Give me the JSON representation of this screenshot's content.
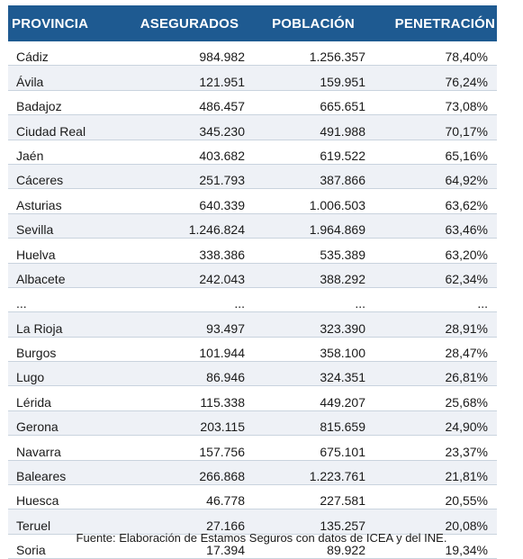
{
  "headers": {
    "provincia": "PROVINCIA",
    "asegurados": "ASEGURADOS",
    "poblacion": "POBLACIÓN",
    "penetracion": "PENETRACIÓN"
  },
  "colors": {
    "header_bg": "#1e5a91",
    "header_text": "#ffffff",
    "row_alt_bg": "#eef1f6",
    "row_border": "#c9d3de"
  },
  "rows": [
    {
      "provincia": "Cádiz",
      "asegurados": "984.982",
      "poblacion": "1.256.357",
      "penetracion": "78,40%"
    },
    {
      "provincia": "Ávila",
      "asegurados": "121.951",
      "poblacion": "159.951",
      "penetracion": "76,24%"
    },
    {
      "provincia": "Badajoz",
      "asegurados": "486.457",
      "poblacion": "665.651",
      "penetracion": "73,08%"
    },
    {
      "provincia": "Ciudad Real",
      "asegurados": "345.230",
      "poblacion": "491.988",
      "penetracion": "70,17%"
    },
    {
      "provincia": "Jaén",
      "asegurados": "403.682",
      "poblacion": "619.522",
      "penetracion": "65,16%"
    },
    {
      "provincia": "Cáceres",
      "asegurados": "251.793",
      "poblacion": "387.866",
      "penetracion": "64,92%"
    },
    {
      "provincia": "Asturias",
      "asegurados": "640.339",
      "poblacion": "1.006.503",
      "penetracion": "63,62%"
    },
    {
      "provincia": "Sevilla",
      "asegurados": "1.246.824",
      "poblacion": "1.964.869",
      "penetracion": "63,46%"
    },
    {
      "provincia": "Huelva",
      "asegurados": "338.386",
      "poblacion": "535.389",
      "penetracion": "63,20%"
    },
    {
      "provincia": "Albacete",
      "asegurados": "242.043",
      "poblacion": "388.292",
      "penetracion": "62,34%"
    },
    {
      "provincia": "...",
      "asegurados": "...",
      "poblacion": "...",
      "penetracion": "..."
    },
    {
      "provincia": "La Rioja",
      "asegurados": "93.497",
      "poblacion": "323.390",
      "penetracion": "28,91%"
    },
    {
      "provincia": "Burgos",
      "asegurados": "101.944",
      "poblacion": "358.100",
      "penetracion": "28,47%"
    },
    {
      "provincia": "Lugo",
      "asegurados": "86.946",
      "poblacion": "324.351",
      "penetracion": "26,81%"
    },
    {
      "provincia": "Lérida",
      "asegurados": "115.338",
      "poblacion": "449.207",
      "penetracion": "25,68%"
    },
    {
      "provincia": "Gerona",
      "asegurados": "203.115",
      "poblacion": "815.659",
      "penetracion": "24,90%"
    },
    {
      "provincia": "Navarra",
      "asegurados": "157.756",
      "poblacion": "675.101",
      "penetracion": "23,37%"
    },
    {
      "provincia": "Baleares",
      "asegurados": "266.868",
      "poblacion": "1.223.761",
      "penetracion": "21,81%"
    },
    {
      "provincia": "Huesca",
      "asegurados": "46.778",
      "poblacion": "227.581",
      "penetracion": "20,55%"
    },
    {
      "provincia": "Teruel",
      "asegurados": "27.166",
      "poblacion": "135.257",
      "penetracion": "20,08%"
    },
    {
      "provincia": "Soria",
      "asegurados": "17.394",
      "poblacion": "89.922",
      "penetracion": "19,34%"
    }
  ],
  "source": "Fuente: Elaboración de Estamos Seguros con datos de ICEA y del INE."
}
